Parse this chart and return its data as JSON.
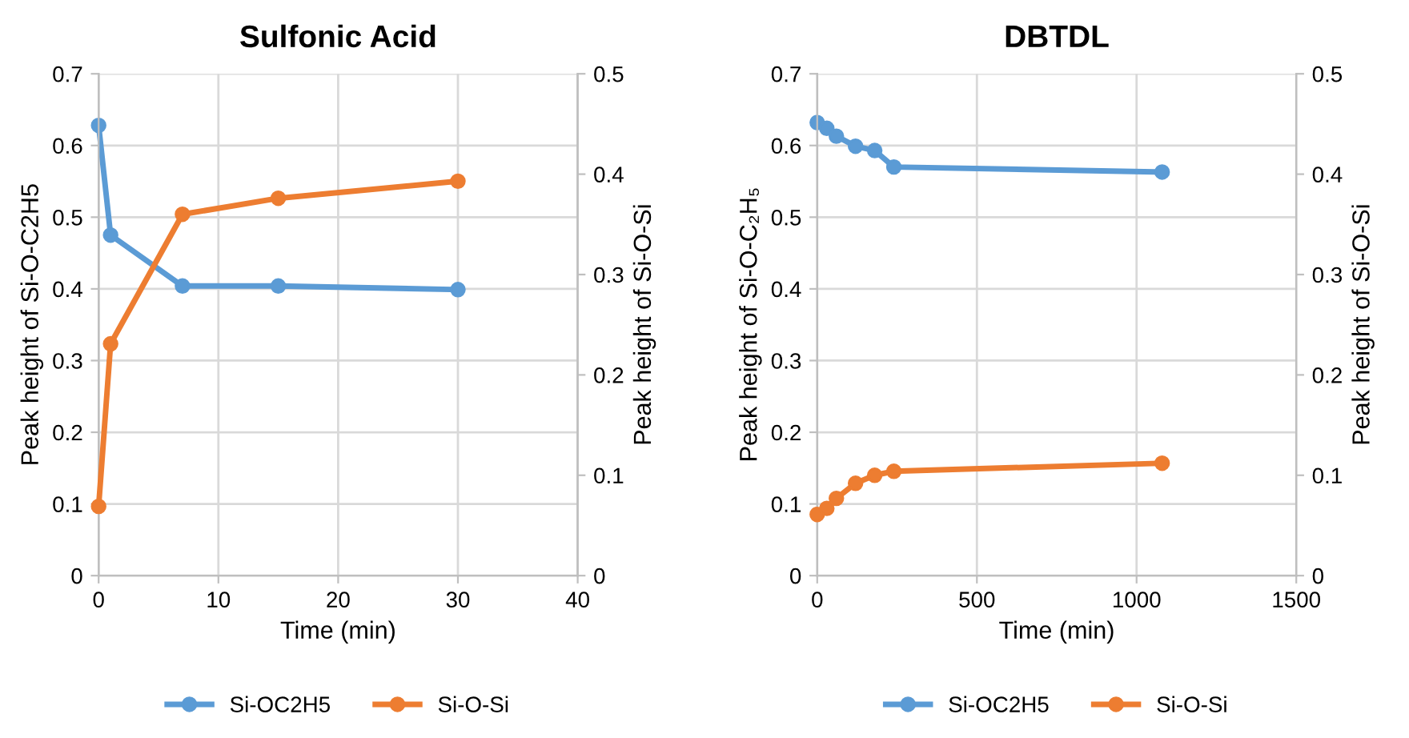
{
  "chart_data": [
    {
      "type": "line",
      "title": "Sulfonic Acid",
      "xlabel": "Time (min)",
      "ylabel": "Peak height of Si-O-C2H5",
      "y2label": "Peak height of Si-O-Si",
      "x": [
        0,
        1,
        7,
        15,
        30
      ],
      "series": [
        {
          "name": "Si-OC2H5",
          "color": "#5b9bd5",
          "values": [
            0.628,
            0.475,
            0.404,
            0.404,
            0.399
          ]
        },
        {
          "name": "Si-O-Si",
          "color": "#ed7d31",
          "axis": "y2",
          "values": [
            0.069,
            0.231,
            0.36,
            0.376,
            0.393
          ]
        }
      ],
      "xlim": [
        0,
        40
      ],
      "xticks": [
        0,
        10,
        20,
        30,
        40
      ],
      "ylim": [
        0,
        0.7
      ],
      "yticks": [
        0,
        0.1,
        0.2,
        0.3,
        0.4,
        0.5,
        0.6,
        0.7
      ],
      "y2lim": [
        0,
        0.5
      ],
      "y2ticks": [
        0,
        0.1,
        0.2,
        0.3,
        0.4,
        0.5
      ],
      "grid": true,
      "legend": "bottom",
      "marker": "circle",
      "line_style": "solid"
    },
    {
      "type": "line",
      "title": "DBTDL",
      "xlabel": "Time (min)",
      "ylabel": "Peak height of Si-O-C₂H₅",
      "y2label": "Peak height of Si-O-Si",
      "x": [
        0,
        30,
        60,
        120,
        180,
        240,
        1080
      ],
      "series": [
        {
          "name": "Si-OC2H5",
          "color": "#5b9bd5",
          "values": [
            0.632,
            0.624,
            0.613,
            0.599,
            0.593,
            0.57,
            0.563
          ]
        },
        {
          "name": "Si-O-Si",
          "color": "#ed7d31",
          "axis": "y2",
          "values": [
            0.061,
            0.067,
            0.077,
            0.092,
            0.1,
            0.104,
            0.112
          ]
        }
      ],
      "xlim": [
        0,
        1500
      ],
      "xticks": [
        0,
        500,
        1000,
        1500
      ],
      "ylim": [
        0,
        0.7
      ],
      "yticks": [
        0,
        0.1,
        0.2,
        0.3,
        0.4,
        0.5,
        0.6,
        0.7
      ],
      "y2lim": [
        0,
        0.5
      ],
      "y2ticks": [
        0,
        0.1,
        0.2,
        0.3,
        0.4,
        0.5
      ],
      "grid": true,
      "legend": "bottom",
      "marker": "circle",
      "line_style": "solid"
    }
  ]
}
